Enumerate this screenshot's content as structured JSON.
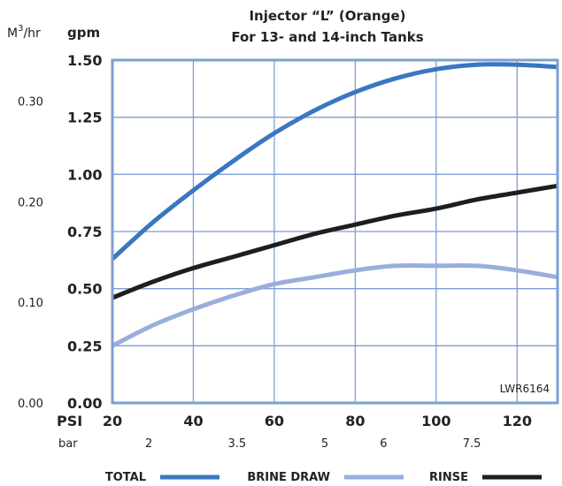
{
  "chart_data": {
    "type": "line",
    "title": "Injector “L”  (Orange)",
    "subtitle": "For 13- and 14-inch Tanks",
    "left_unit_label": "M",
    "left_unit_sup": "3",
    "left_unit_suffix": "/hr",
    "ylabel": "gpm",
    "xlabel": "PSI",
    "x2label": "bar",
    "watermark": "LWR6164",
    "xlim": [
      20,
      130
    ],
    "ylim": [
      0,
      1.5
    ],
    "x_ticks": [
      {
        "value": 20,
        "label": "20"
      },
      {
        "value": 40,
        "label": "40"
      },
      {
        "value": 60,
        "label": "60"
      },
      {
        "value": 80,
        "label": "80"
      },
      {
        "value": 100,
        "label": "100"
      },
      {
        "value": 120,
        "label": "120"
      }
    ],
    "y_ticks": [
      {
        "value": 0,
        "label": "0.00"
      },
      {
        "value": 0.25,
        "label": "0.25"
      },
      {
        "value": 0.5,
        "label": "0.50"
      },
      {
        "value": 0.75,
        "label": "0.75"
      },
      {
        "value": 1.0,
        "label": "1.00"
      },
      {
        "value": 1.25,
        "label": "1.25"
      },
      {
        "value": 1.5,
        "label": "1.50"
      }
    ],
    "y2_ticks": [
      {
        "value": 0,
        "label": "0.00"
      },
      {
        "value": 0.44,
        "label": "0.10"
      },
      {
        "value": 0.88,
        "label": "0.20"
      },
      {
        "value": 1.32,
        "label": "0.30"
      }
    ],
    "x2_ticks": [
      {
        "value": 29,
        "label": "2"
      },
      {
        "value": 50.8,
        "label": "3.5"
      },
      {
        "value": 72.5,
        "label": "5"
      },
      {
        "value": 87,
        "label": "6"
      },
      {
        "value": 108.8,
        "label": "7.5"
      }
    ],
    "grid": true,
    "legend_position": "bottom",
    "series": [
      {
        "name": "TOTAL",
        "color": "#3a77c0",
        "x": [
          20,
          30,
          40,
          50,
          60,
          70,
          80,
          90,
          100,
          110,
          120,
          130
        ],
        "y": [
          0.63,
          0.79,
          0.93,
          1.06,
          1.18,
          1.28,
          1.36,
          1.42,
          1.46,
          1.48,
          1.48,
          1.47
        ]
      },
      {
        "name": "BRINE DRAW",
        "color": "#9aaedc",
        "x": [
          20,
          30,
          40,
          50,
          60,
          70,
          80,
          90,
          100,
          110,
          120,
          130
        ],
        "y": [
          0.25,
          0.34,
          0.41,
          0.47,
          0.52,
          0.55,
          0.58,
          0.6,
          0.6,
          0.6,
          0.58,
          0.55
        ]
      },
      {
        "name": "RINSE",
        "color": "#1e1e1e",
        "x": [
          20,
          30,
          40,
          50,
          60,
          70,
          80,
          90,
          100,
          110,
          120,
          130
        ],
        "y": [
          0.46,
          0.53,
          0.59,
          0.64,
          0.69,
          0.74,
          0.78,
          0.82,
          0.85,
          0.89,
          0.92,
          0.95
        ]
      }
    ]
  }
}
